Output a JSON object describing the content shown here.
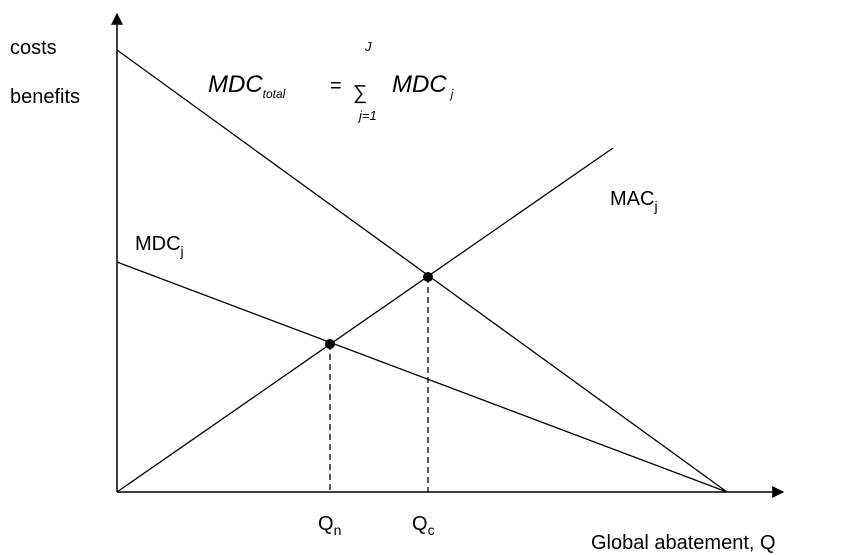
{
  "axes": {
    "y_label_line1": "costs",
    "y_label_line2": "benefits",
    "x_label": "Global abatement, Q"
  },
  "curves": {
    "mac_main": "MAC",
    "mac_sub": "j",
    "mdc_main": "MDC",
    "mdc_sub": "j"
  },
  "ticks": {
    "qn_main": "Q",
    "qn_sub": "n",
    "qc_main": "Q",
    "qc_sub": "c"
  },
  "formula": {
    "lhs_main": "MDC",
    "lhs_sub": "total",
    "equals": "=",
    "sigma": "∑",
    "upper": "J",
    "lower": "j=1",
    "rhs_main": "MDC",
    "rhs_sub": "j"
  }
}
